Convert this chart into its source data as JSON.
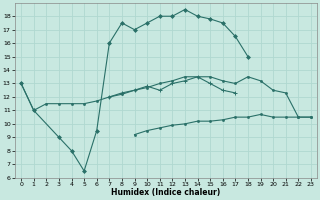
{
  "xlabel": "Humidex (Indice chaleur)",
  "bg_color": "#c8e8e0",
  "line_color": "#2a7068",
  "grid_color": "#b0d8d0",
  "xlim": [
    -0.5,
    23.5
  ],
  "ylim": [
    6,
    19
  ],
  "yticks": [
    6,
    7,
    8,
    9,
    10,
    11,
    12,
    13,
    14,
    15,
    16,
    17,
    18
  ],
  "xticks": [
    0,
    1,
    2,
    3,
    4,
    5,
    6,
    7,
    8,
    9,
    10,
    11,
    12,
    13,
    14,
    15,
    16,
    17,
    18,
    19,
    20,
    21,
    22,
    23
  ],
  "curve_a_x": [
    0,
    1,
    3,
    4,
    5,
    6,
    7,
    8,
    9,
    10,
    11,
    12,
    13,
    14,
    15,
    16,
    17,
    18
  ],
  "curve_a_y": [
    13.0,
    11.0,
    9.0,
    8.0,
    6.5,
    9.5,
    16.0,
    17.5,
    17.0,
    17.5,
    18.0,
    18.0,
    18.5,
    18.0,
    17.8,
    17.5,
    16.5,
    15.0
  ],
  "curve_b_x": [
    0,
    1,
    2,
    3,
    4,
    5,
    6,
    7,
    8,
    9,
    10,
    11,
    12,
    13,
    14,
    15,
    16,
    17,
    18,
    19,
    20,
    21,
    22,
    23
  ],
  "curve_b_y": [
    13.0,
    11.0,
    11.5,
    11.5,
    11.5,
    11.5,
    11.7,
    12.0,
    12.2,
    12.5,
    12.7,
    13.0,
    13.2,
    13.5,
    13.5,
    13.5,
    13.2,
    13.0,
    13.5,
    13.2,
    12.5,
    12.3,
    10.5,
    10.5
  ],
  "curve_c_x": [
    7,
    8,
    9,
    10,
    11,
    12,
    13,
    14,
    15,
    16,
    17
  ],
  "curve_c_y": [
    12.0,
    12.3,
    12.5,
    12.8,
    12.5,
    13.0,
    13.2,
    13.5,
    13.0,
    12.5,
    12.3
  ],
  "curve_d_x": [
    9,
    10,
    11,
    12,
    13,
    14,
    15,
    16,
    17,
    18,
    19,
    20,
    21,
    22,
    23
  ],
  "curve_d_y": [
    9.2,
    9.5,
    9.7,
    9.9,
    10.0,
    10.2,
    10.2,
    10.3,
    10.5,
    10.5,
    10.7,
    10.5,
    10.5,
    10.5,
    10.5
  ]
}
